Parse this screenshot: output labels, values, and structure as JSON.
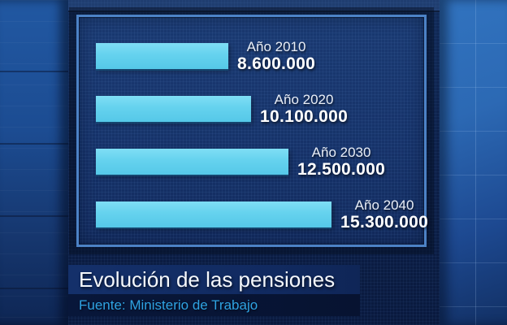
{
  "chart_data": {
    "type": "bar",
    "orientation": "horizontal",
    "title": "Evolución de las pensiones",
    "source": "Fuente: Ministerio de Trabajo",
    "categories": [
      "Año 2010",
      "Año 2020",
      "Año 2030",
      "Año 2040"
    ],
    "values": [
      8600000,
      10100000,
      12500000,
      15300000
    ],
    "bars": [
      {
        "label": "Año 2010",
        "value": 8600000,
        "display_value": "8.600.000"
      },
      {
        "label": "Año 2020",
        "value": 10100000,
        "display_value": "10.100.000"
      },
      {
        "label": "Año 2030",
        "value": 12500000,
        "display_value": "12.500.000"
      },
      {
        "label": "Año 2040",
        "value": 15300000,
        "display_value": "15.300.000"
      }
    ],
    "xlim": [
      0,
      15300000
    ],
    "legend": "none",
    "grid": "off",
    "bar_color": "#62cfec"
  },
  "footer": {
    "title": "Evolución de las pensiones",
    "source": "Fuente: Ministerio de Trabajo"
  },
  "colors": {
    "bar": "#62cfec",
    "panel_border": "#4c82c6",
    "panel_background": "#16336a",
    "title_text": "#f5f8fc",
    "source_text": "#2fa3e3"
  }
}
